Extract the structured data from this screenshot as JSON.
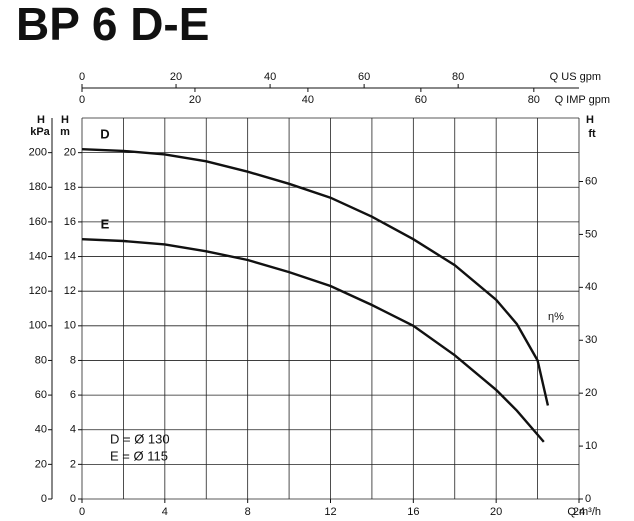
{
  "chart_data": {
    "type": "line",
    "title": "BP 6 D-E",
    "xlabel": "Q m³/h",
    "xlim": [
      0,
      24
    ],
    "xticks": [
      0,
      4,
      8,
      12,
      16,
      20,
      24
    ],
    "xgrid": [
      0,
      2,
      4,
      6,
      8,
      10,
      12,
      14,
      16,
      18,
      20,
      22,
      24
    ],
    "ylabel": [
      "H",
      "m"
    ],
    "ylim": [
      0,
      22
    ],
    "yticks": [
      0,
      2,
      4,
      6,
      8,
      10,
      12,
      14,
      16,
      18,
      20
    ],
    "ygrid": [
      0,
      2,
      4,
      6,
      8,
      10,
      12,
      14,
      16,
      18,
      20,
      22
    ],
    "y2label": [
      "H",
      "kPa"
    ],
    "y2lim": [
      0,
      220
    ],
    "y2ticks": [
      0,
      20,
      40,
      60,
      80,
      100,
      120,
      140,
      160,
      180,
      200
    ],
    "y3label": [
      "H",
      "ft"
    ],
    "y3lim": [
      0,
      72
    ],
    "y3ticks": [
      0,
      10,
      20,
      30,
      40,
      50,
      60
    ],
    "x2label": "Q US gpm",
    "x2lim": [
      0,
      105.7
    ],
    "x2ticks": [
      0,
      20,
      40,
      60,
      80
    ],
    "x3label": "Q IMP gpm",
    "x3lim": [
      0,
      88
    ],
    "x3ticks": [
      0,
      20,
      40,
      60,
      80
    ],
    "grid": true,
    "series": [
      {
        "name": "D",
        "color": "#111111",
        "x": [
          0,
          2,
          4,
          6,
          8,
          10,
          12,
          14,
          16,
          18,
          20,
          21,
          22,
          22.5
        ],
        "values": [
          20.2,
          20.1,
          19.9,
          19.5,
          18.9,
          18.2,
          17.4,
          16.3,
          15.0,
          13.5,
          11.5,
          10.1,
          8.0,
          5.4
        ]
      },
      {
        "name": "E",
        "color": "#111111",
        "x": [
          0,
          2,
          4,
          6,
          8,
          10,
          12,
          14,
          16,
          18,
          20,
          21,
          22.3
        ],
        "values": [
          15.0,
          14.9,
          14.7,
          14.3,
          13.8,
          13.1,
          12.3,
          11.2,
          10.0,
          8.3,
          6.3,
          5.1,
          3.3
        ]
      }
    ],
    "efficiency_label": "η%",
    "legend_notes": [
      "D = Ø 130",
      "E = Ø 115"
    ]
  }
}
